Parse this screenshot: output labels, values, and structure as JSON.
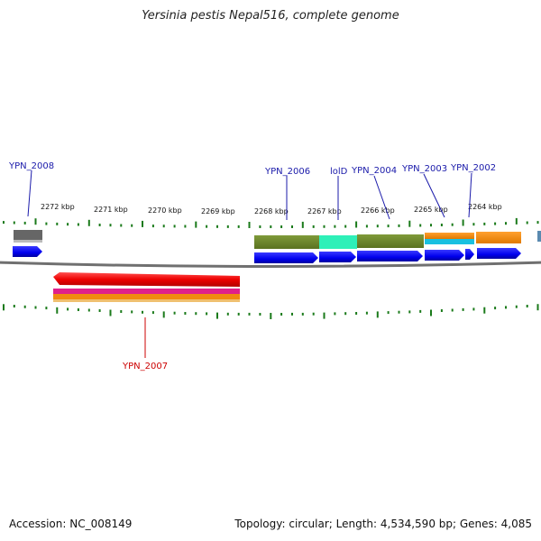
{
  "genome": {
    "title": "Yersinia pestis Nepal516, complete genome",
    "accession": "Accession: NC_008149",
    "topology": "Topology: circular; Length: 4,534,590 bp; Genes: 4,085"
  },
  "kbp_labels": [
    "2272 kbp",
    "2271 kbp",
    "2270 kbp",
    "2269 kbp",
    "2268 kbp",
    "2267 kbp",
    "2266 kbp",
    "2265 kbp",
    "2264 kbp"
  ],
  "gene_labels": [
    "YPN_2008",
    "YPN_2006",
    "lolD",
    "YPN_2004",
    "YPN_2003",
    "YPN_2002",
    "YPN_2007"
  ],
  "colors": {
    "forward_cds": "#0000ee",
    "reverse_cds": "#ee0000",
    "forward_label": "#1a1aaa",
    "reverse_label": "#cc0000",
    "olive": "#6f8a2e",
    "teal": "#2ef0b8",
    "orange": "#f08a10",
    "cyan": "#19c0e0",
    "magenta": "#e0208a",
    "gray": "#666666",
    "ticks": "#1a7a1a",
    "backbone": "#707070"
  }
}
